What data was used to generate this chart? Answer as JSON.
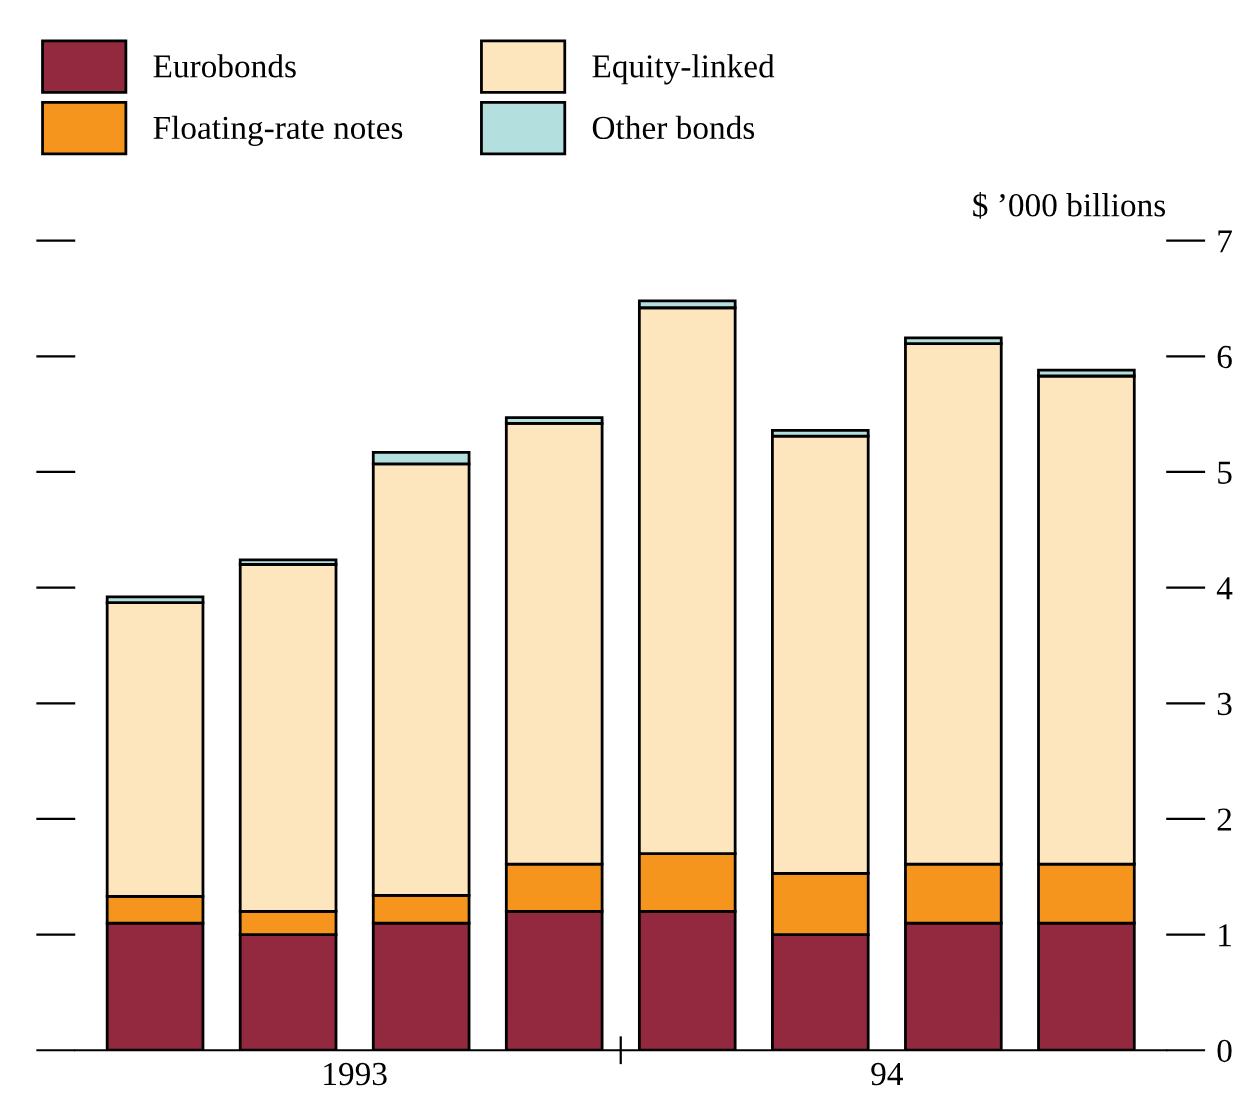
{
  "chart_data": {
    "type": "bar",
    "stacked": true,
    "categories": [
      null,
      null,
      null,
      null,
      null,
      null,
      null,
      null
    ],
    "ylabel": "$ ’000 billions",
    "annotations": [
      "1993",
      "94"
    ],
    "series": [
      {
        "name": "Eurobonds",
        "color": "#93293f",
        "values": [
          1.1,
          1.0,
          1.1,
          1.2,
          1.2,
          1.0,
          1.1,
          1.1
        ]
      },
      {
        "name": "Floating-rate notes",
        "color": "#f5951e",
        "values": [
          0.23,
          0.2,
          0.24,
          0.41,
          0.5,
          0.53,
          0.51,
          0.51
        ]
      },
      {
        "name": "Equity-linked",
        "color": "#fde5bd",
        "values": [
          2.54,
          3.0,
          3.73,
          3.81,
          4.72,
          3.78,
          4.5,
          4.22
        ]
      },
      {
        "name": "Other bonds",
        "color": "#b3e0de",
        "values": [
          0.05,
          0.04,
          0.1,
          0.05,
          0.06,
          0.05,
          0.05,
          0.05
        ]
      }
    ],
    "ylim": [
      0,
      7
    ],
    "yticks": [
      0,
      1,
      2,
      3,
      4,
      5,
      6,
      7
    ],
    "tick_labels": "y",
    "grid": false,
    "legend": "top left"
  }
}
